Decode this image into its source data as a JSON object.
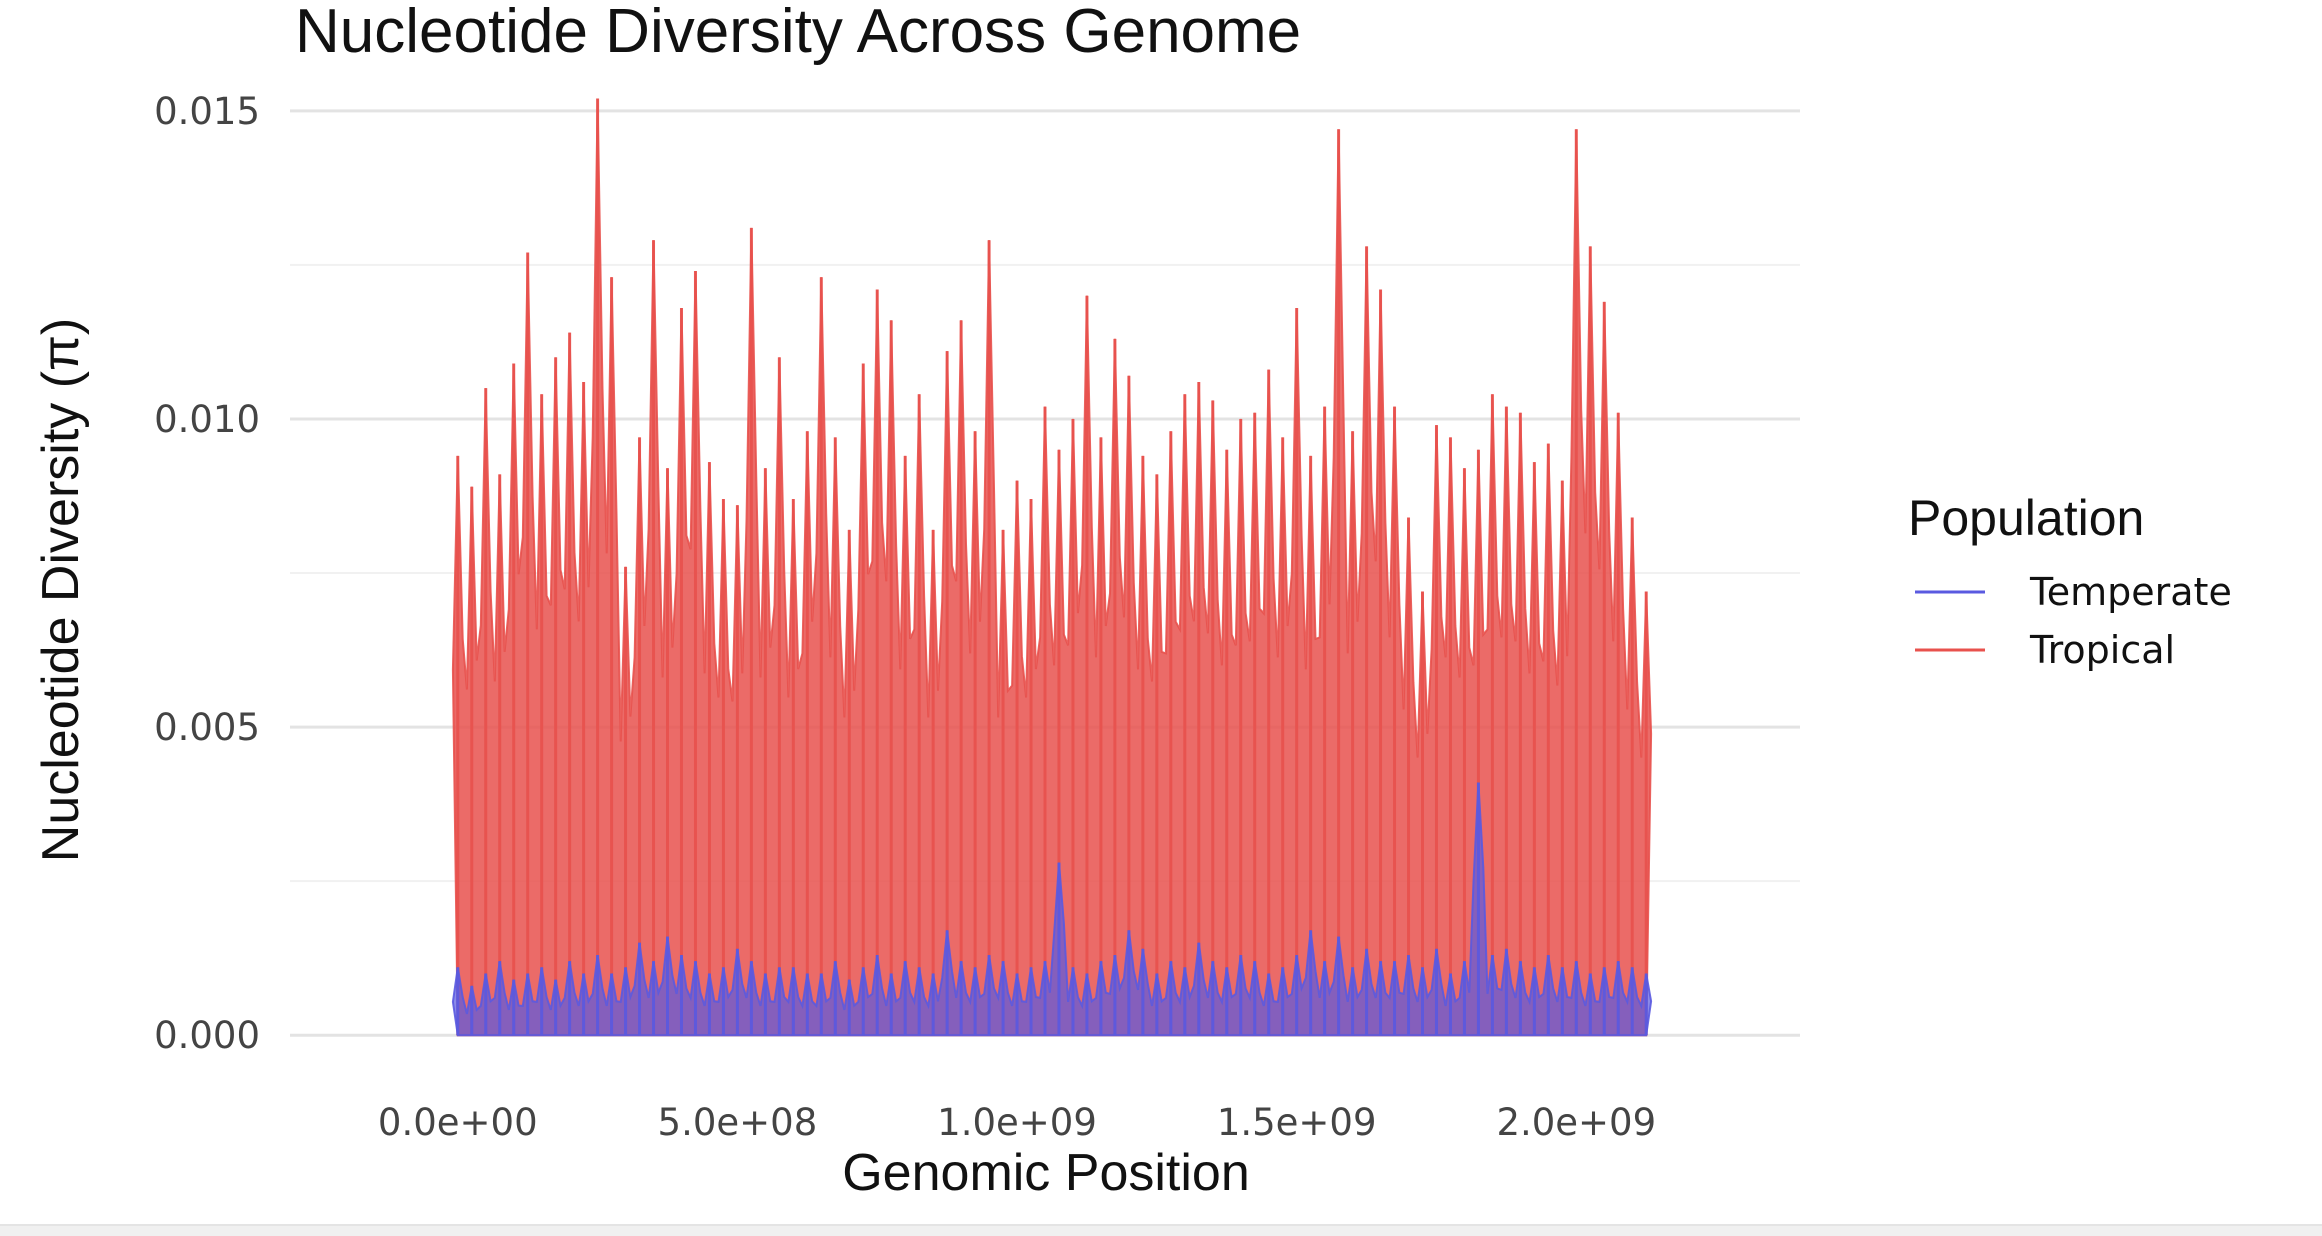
{
  "chart_data": {
    "type": "line",
    "title": "Nucleotide Diversity Across Genome",
    "xlabel": "Genomic Position",
    "ylabel": "Nucleotide Diversity (π)",
    "xlim": [
      -300000000,
      2400000000
    ],
    "ylim": [
      -0.0005,
      0.0155
    ],
    "x_ticks": [
      0,
      500000000,
      1000000000,
      1500000000,
      2000000000
    ],
    "x_tick_labels": [
      "0.0e+00",
      "5.0e+08",
      "1.0e+09",
      "1.5e+09",
      "2.0e+09"
    ],
    "y_ticks": [
      0.0,
      0.005,
      0.01,
      0.015
    ],
    "y_tick_labels": [
      "0.000",
      "0.005",
      "0.010",
      "0.015"
    ],
    "grid": true,
    "legend": {
      "title": "Population",
      "placement": "right"
    },
    "series": [
      {
        "name": "Tropical",
        "color": "#e8514d",
        "x": [
          0,
          25000000,
          50000000,
          75000000,
          100000000,
          125000000,
          150000000,
          175000000,
          200000000,
          225000000,
          250000000,
          275000000,
          300000000,
          325000000,
          350000000,
          375000000,
          400000000,
          425000000,
          450000000,
          475000000,
          500000000,
          525000000,
          550000000,
          575000000,
          600000000,
          625000000,
          650000000,
          675000000,
          700000000,
          725000000,
          750000000,
          775000000,
          800000000,
          825000000,
          850000000,
          875000000,
          900000000,
          925000000,
          950000000,
          975000000,
          1000000000,
          1025000000,
          1050000000,
          1075000000,
          1100000000,
          1125000000,
          1150000000,
          1175000000,
          1200000000,
          1225000000,
          1250000000,
          1275000000,
          1300000000,
          1325000000,
          1350000000,
          1375000000,
          1400000000,
          1425000000,
          1450000000,
          1475000000,
          1500000000,
          1525000000,
          1550000000,
          1575000000,
          1600000000,
          1625000000,
          1650000000,
          1675000000,
          1700000000,
          1725000000,
          1750000000,
          1775000000,
          1800000000,
          1825000000,
          1850000000,
          1875000000,
          1900000000,
          1925000000,
          1950000000,
          1975000000,
          2000000000,
          2025000000,
          2050000000,
          2075000000,
          2100000000,
          2125000000
        ],
        "values": [
          0.0094,
          0.0089,
          0.0105,
          0.0091,
          0.0109,
          0.0127,
          0.0104,
          0.011,
          0.0114,
          0.0106,
          0.0152,
          0.0123,
          0.0076,
          0.0097,
          0.0129,
          0.0092,
          0.0118,
          0.0124,
          0.0093,
          0.0087,
          0.0086,
          0.0131,
          0.0092,
          0.011,
          0.0087,
          0.0098,
          0.0123,
          0.0097,
          0.0082,
          0.0109,
          0.0121,
          0.0116,
          0.0094,
          0.0104,
          0.0082,
          0.0111,
          0.0116,
          0.0098,
          0.0129,
          0.0082,
          0.009,
          0.0087,
          0.0102,
          0.0095,
          0.01,
          0.012,
          0.0097,
          0.0113,
          0.0107,
          0.0094,
          0.0091,
          0.0098,
          0.0104,
          0.0106,
          0.0103,
          0.0095,
          0.01,
          0.0101,
          0.0108,
          0.0097,
          0.0118,
          0.0094,
          0.0102,
          0.0147,
          0.0098,
          0.0128,
          0.0121,
          0.0102,
          0.0084,
          0.0072,
          0.0099,
          0.0097,
          0.0092,
          0.0095,
          0.0104,
          0.0102,
          0.0101,
          0.0093,
          0.0096,
          0.009,
          0.0147,
          0.0128,
          0.0119,
          0.0101,
          0.0084,
          0.0072
        ]
      },
      {
        "name": "Temperate",
        "color": "#5a5ae0",
        "x": [
          0,
          25000000,
          50000000,
          75000000,
          100000000,
          125000000,
          150000000,
          175000000,
          200000000,
          225000000,
          250000000,
          275000000,
          300000000,
          325000000,
          350000000,
          375000000,
          400000000,
          425000000,
          450000000,
          475000000,
          500000000,
          525000000,
          550000000,
          575000000,
          600000000,
          625000000,
          650000000,
          675000000,
          700000000,
          725000000,
          750000000,
          775000000,
          800000000,
          825000000,
          850000000,
          875000000,
          900000000,
          925000000,
          950000000,
          975000000,
          1000000000,
          1025000000,
          1050000000,
          1075000000,
          1100000000,
          1125000000,
          1150000000,
          1175000000,
          1200000000,
          1225000000,
          1250000000,
          1275000000,
          1300000000,
          1325000000,
          1350000000,
          1375000000,
          1400000000,
          1425000000,
          1450000000,
          1475000000,
          1500000000,
          1525000000,
          1550000000,
          1575000000,
          1600000000,
          1625000000,
          1650000000,
          1675000000,
          1700000000,
          1725000000,
          1750000000,
          1775000000,
          1800000000,
          1825000000,
          1850000000,
          1875000000,
          1900000000,
          1925000000,
          1950000000,
          1975000000,
          2000000000,
          2025000000,
          2050000000,
          2075000000,
          2100000000,
          2125000000
        ],
        "values": [
          0.0011,
          0.0008,
          0.001,
          0.0012,
          0.0009,
          0.001,
          0.0011,
          0.0009,
          0.0012,
          0.001,
          0.0013,
          0.001,
          0.0011,
          0.0015,
          0.0012,
          0.0016,
          0.0013,
          0.0012,
          0.001,
          0.0011,
          0.0014,
          0.0012,
          0.001,
          0.0011,
          0.0011,
          0.001,
          0.001,
          0.0012,
          0.0009,
          0.0011,
          0.0013,
          0.001,
          0.0012,
          0.0011,
          0.001,
          0.0017,
          0.0012,
          0.0011,
          0.0013,
          0.0012,
          0.001,
          0.0011,
          0.0012,
          0.0028,
          0.0011,
          0.001,
          0.0012,
          0.0013,
          0.0017,
          0.0014,
          0.001,
          0.0012,
          0.0011,
          0.0015,
          0.0012,
          0.0011,
          0.0013,
          0.0012,
          0.001,
          0.0011,
          0.0013,
          0.0017,
          0.0012,
          0.0016,
          0.0011,
          0.0014,
          0.0012,
          0.0012,
          0.0013,
          0.0011,
          0.0014,
          0.001,
          0.0012,
          0.0041,
          0.0013,
          0.0014,
          0.0012,
          0.0011,
          0.0013,
          0.0011,
          0.0012,
          0.001,
          0.0011,
          0.0012,
          0.0011,
          0.001
        ]
      }
    ]
  }
}
